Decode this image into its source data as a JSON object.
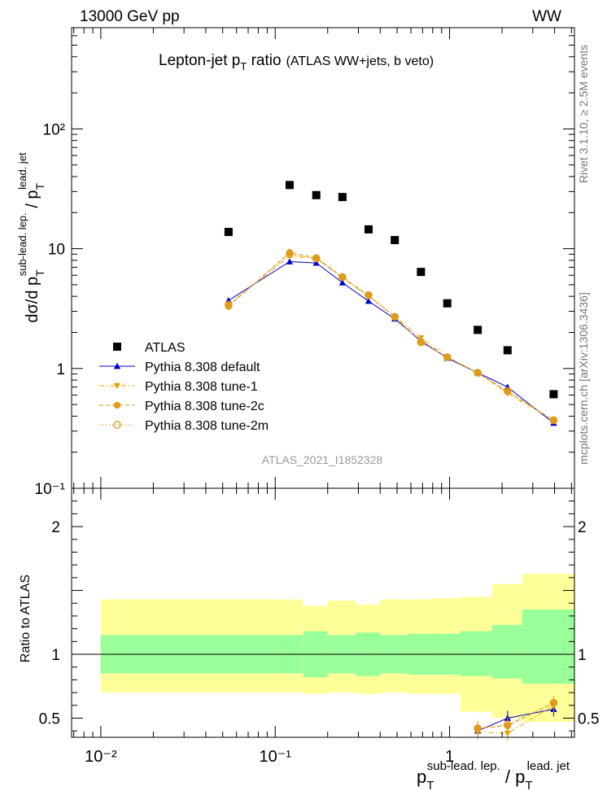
{
  "header": {
    "left": "13000 GeV pp",
    "right": "WW"
  },
  "side_labels": {
    "rivet": "Rivet 3.1.10, ≥ 2.5M events",
    "mcplots": "mcplots.cern.ch [arXiv:1306.3436]"
  },
  "chart_data": [
    {
      "type": "scatter",
      "panel": "main",
      "title_main": "Lepton-jet p",
      "title_sub": "T",
      "title_rest": " ratio",
      "title_extra": "(ATLAS WW+jets, b veto)",
      "ylabel": {
        "main": "dσ/d p",
        "sub": "T",
        "sup": "sub-lead. lep.",
        "slash": " / p",
        "sub2": "T",
        "sup2": "lead. jet"
      },
      "xlabel": {
        "p1": "p",
        "sub1": "T",
        "sup1": "sub-lead. lep.",
        "slash": " / p",
        "sub2": "T",
        "sup2": "lead. jet"
      },
      "xscale": "log",
      "yscale": "log",
      "xlim": [
        0.0068,
        5.2
      ],
      "ylim": [
        0.1,
        700
      ],
      "ytick_labels": [
        "10⁻¹",
        "1",
        "10",
        "10²"
      ],
      "xtick_labels": [
        "10⁻²",
        "10⁻¹",
        "1"
      ],
      "watermark": "ATLAS_2021_I1852328",
      "legend_position": "bottom-left",
      "x": [
        0.054,
        0.121,
        0.172,
        0.243,
        0.343,
        0.485,
        0.685,
        0.97,
        1.45,
        2.15,
        3.95
      ],
      "series": [
        {
          "name": "ATLAS",
          "color": "#000000",
          "marker": "square",
          "values": [
            13.8,
            34.0,
            28.0,
            27.0,
            14.5,
            11.8,
            6.4,
            3.5,
            2.1,
            1.42,
            0.61
          ]
        },
        {
          "name": "Pythia 8.308 default",
          "color": "#0000cc",
          "marker": "triangle-up",
          "line": "solid",
          "values": [
            3.7,
            7.8,
            7.6,
            5.2,
            3.65,
            2.6,
            1.7,
            1.22,
            0.92,
            0.7,
            0.35
          ]
        },
        {
          "name": "Pythia 8.308 tune-1",
          "color": "#e5a50a",
          "marker": "triangle-down",
          "line": "dash-dot",
          "values": [
            3.4,
            8.7,
            8.3,
            5.7,
            4.0,
            2.72,
            1.8,
            1.25,
            0.92,
            0.62,
            0.37
          ]
        },
        {
          "name": "Pythia 8.308 tune-2c",
          "color": "#e09a1a",
          "marker": "circle-filled",
          "line": "dashed",
          "values": [
            3.3,
            9.3,
            8.4,
            5.8,
            4.05,
            2.7,
            1.65,
            1.24,
            0.92,
            0.64,
            0.37
          ]
        },
        {
          "name": "Pythia 8.308 tune-2m",
          "color": "#e09a1a",
          "marker": "circle-open",
          "line": "dotted",
          "values": [
            3.4,
            9.0,
            8.3,
            5.8,
            4.1,
            2.7,
            1.66,
            1.24,
            0.92,
            0.65,
            0.37
          ]
        }
      ]
    },
    {
      "type": "scatter",
      "panel": "ratio",
      "ylabel": "Ratio to ATLAS",
      "ylim": [
        0.35,
        2.3
      ],
      "ytick_labels": [
        "0.5",
        "1",
        "2"
      ],
      "bin_edges": [
        0.01,
        0.1,
        0.145,
        0.2,
        0.29,
        0.4,
        0.57,
        0.8,
        1.15,
        1.75,
        2.6,
        5.2
      ],
      "band_inner": {
        "color": "#99ff99",
        "low": [
          0.85,
          0.85,
          0.82,
          0.85,
          0.83,
          0.85,
          0.84,
          0.84,
          0.83,
          0.81,
          0.77
        ],
        "high": [
          1.15,
          1.15,
          1.18,
          1.15,
          1.17,
          1.15,
          1.16,
          1.16,
          1.18,
          1.23,
          1.35
        ]
      },
      "band_outer": {
        "color": "#ffff99",
        "low": [
          0.7,
          0.7,
          0.69,
          0.7,
          0.69,
          0.7,
          0.69,
          0.69,
          0.55,
          0.5,
          0.47
        ],
        "high": [
          1.43,
          1.43,
          1.38,
          1.42,
          1.39,
          1.43,
          1.43,
          1.44,
          1.45,
          1.55,
          1.63
        ]
      },
      "x": [
        1.45,
        2.15,
        3.95
      ],
      "series": [
        {
          "name": "Pythia 8.308 default",
          "color": "#0000cc",
          "marker": "triangle-up",
          "line": "solid",
          "values": [
            0.4,
            0.5,
            0.57
          ]
        },
        {
          "name": "Pythia 8.308 tune-1",
          "color": "#e5a50a",
          "marker": "triangle-down",
          "line": "dash-dot",
          "values": [
            0.39,
            0.38,
            0.6
          ]
        },
        {
          "name": "Pythia 8.308 tune-2c",
          "color": "#e09a1a",
          "marker": "circle-filled",
          "line": "dashed",
          "values": [
            0.42,
            0.44,
            0.62
          ]
        },
        {
          "name": "Pythia 8.308 tune-2m",
          "color": "#e09a1a",
          "marker": "circle-open",
          "line": "dotted",
          "values": [
            0.42,
            0.45,
            0.62
          ]
        }
      ]
    }
  ]
}
